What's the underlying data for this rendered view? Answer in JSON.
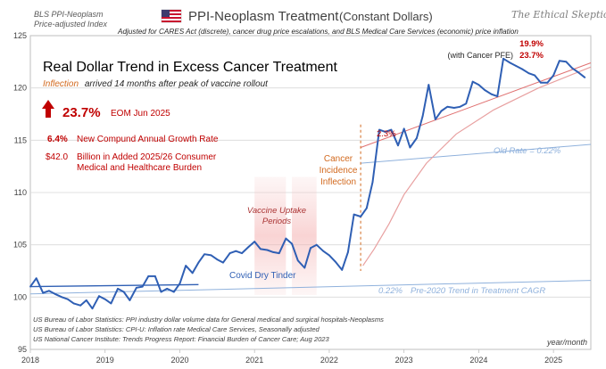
{
  "corner_label_line1": "BLS PPI-Neoplasm",
  "corner_label_line2": "Price-adjusted Index",
  "title_main": "PPI-Neoplasm Treatment",
  "title_sub": "(Constant Dollars)",
  "brand": "The Ethical Skeptic",
  "subtitle": "Adjusted for CARES Act (discrete), cancer drug price escalations, and BLS Medical Care Services (economic) price inflation",
  "headline": "Real Dollar Trend in Excess Cancer Treatment",
  "inflection_word": "Inflection",
  "inflection_rest": "arrived 14 months after peak of vaccine rollout",
  "stat_big": "23.7%",
  "stat_big_note": "EOM Jun 2025",
  "stat_rate_value": "6.4%",
  "stat_rate_label": "New Compund Annual Growth Rate",
  "stat_burden_value": "$42.0",
  "stat_burden_line1": "Billion in Added 2025/26 Consumer",
  "stat_burden_line2": "Medical and Healthcare Burden",
  "annot_vaccine_line1": "Vaccine Uptake",
  "annot_vaccine_line2": "Periods",
  "annot_tinder": "Covid Dry Tinder",
  "annot_cancer_line1": "Cancer",
  "annot_cancer_line2": "Incidence",
  "annot_cancer_line3": "Inflection",
  "annot_trend_pct": "2.3%",
  "annot_old_rate": "Old Rate = 0.22%",
  "annot_pre2020_pct": "0.22%",
  "annot_pre2020_text": "Pre-2020 Trend in Treatment CAGR",
  "annot_top_pct1": "19.9%",
  "annot_with_pfe": "(with Cancer PFE)",
  "annot_top_pct2": "23.7%",
  "axis_unit": "year/month",
  "sources": [
    "US Bureau of Labor Statistics: PPI industry dollar volume data for General medical and surgical hospitals-Neoplasms",
    "US Bureau of Labor Statistics: CPI-U: Inflation rate Medical Care Services, Seasonally adjusted",
    "US National Cancer Institute: Trends Progress Report: Financial Burden of Cancer Care; Aug 2023"
  ],
  "colors": {
    "series": "#2f5fb4",
    "accent_red": "#c00000",
    "orange": "#d2691e",
    "light_blue": "#8fb1dc",
    "grid": "#d9d9d9"
  },
  "chart_data": {
    "type": "line",
    "title": "PPI-Neoplasm Treatment (Constant Dollars)",
    "ylabel": "BLS PPI-Neoplasm Price-adjusted Index",
    "xlabel": "year/month",
    "ylim": [
      95,
      125
    ],
    "yticks": [
      95,
      100,
      105,
      110,
      115,
      120,
      125
    ],
    "xlim": [
      2018.0,
      2025.5
    ],
    "xticks": [
      "2018",
      "2019",
      "2020",
      "2021",
      "2022",
      "2023",
      "2024",
      "2025"
    ],
    "grid": true,
    "series": [
      {
        "name": "PPI-Neoplasm (constant dollars)",
        "x": [
          2018.0,
          2018.08,
          2018.17,
          2018.25,
          2018.33,
          2018.42,
          2018.5,
          2018.58,
          2018.67,
          2018.75,
          2018.83,
          2018.92,
          2019.0,
          2019.08,
          2019.17,
          2019.25,
          2019.33,
          2019.42,
          2019.5,
          2019.58,
          2019.67,
          2019.75,
          2019.83,
          2019.92,
          2020.0,
          2020.08,
          2020.17,
          2020.25,
          2020.33,
          2020.42,
          2020.5,
          2020.58,
          2020.67,
          2020.75,
          2020.83,
          2020.92,
          2021.0,
          2021.08,
          2021.17,
          2021.25,
          2021.33,
          2021.42,
          2021.5,
          2021.58,
          2021.67,
          2021.75,
          2021.83,
          2021.92,
          2022.0,
          2022.08,
          2022.17,
          2022.25,
          2022.33,
          2022.42,
          2022.5,
          2022.58,
          2022.67,
          2022.75,
          2022.83,
          2022.92,
          2023.0,
          2023.08,
          2023.17,
          2023.25,
          2023.33,
          2023.42,
          2023.5,
          2023.58,
          2023.67,
          2023.75,
          2023.83,
          2023.92,
          2024.0,
          2024.08,
          2024.17,
          2024.25,
          2024.33,
          2024.42,
          2024.5,
          2024.58,
          2024.67,
          2024.75,
          2024.83,
          2024.92,
          2025.0,
          2025.08,
          2025.17,
          2025.25,
          2025.33,
          2025.42
        ],
        "y": [
          101.0,
          101.8,
          100.4,
          100.6,
          100.3,
          100.0,
          99.8,
          99.4,
          99.2,
          99.7,
          98.9,
          100.1,
          99.8,
          99.4,
          100.8,
          100.5,
          99.7,
          100.9,
          101.0,
          102.0,
          102.0,
          100.5,
          100.8,
          100.5,
          101.3,
          103.0,
          102.3,
          103.3,
          104.1,
          104.0,
          103.6,
          103.3,
          104.2,
          104.4,
          104.2,
          104.8,
          105.3,
          104.6,
          104.5,
          104.3,
          104.2,
          105.6,
          105.1,
          103.5,
          102.8,
          104.7,
          105.0,
          104.4,
          104.0,
          103.4,
          102.6,
          104.3,
          107.9,
          107.7,
          108.5,
          111.0,
          116.0,
          115.8,
          116.0,
          114.5,
          116.1,
          114.3,
          115.2,
          117.3,
          120.3,
          117.0,
          117.8,
          118.2,
          118.1,
          118.2,
          118.5,
          120.6,
          120.3,
          119.8,
          119.4,
          119.2,
          122.8,
          122.4,
          122.1,
          121.8,
          121.4,
          121.2,
          120.5,
          120.5,
          121.2,
          122.6,
          122.5,
          121.9,
          121.5,
          121.0
        ]
      },
      {
        "name": "Pre-2020 trend",
        "x": [
          2018.0,
          2020.25
        ],
        "y": [
          101.0,
          101.2
        ]
      },
      {
        "name": "0.22% pre-2020 trend (extended)",
        "x": [
          2018.0,
          2025.5
        ],
        "y": [
          100.3,
          101.6
        ]
      },
      {
        "name": "Old Rate = 0.22%",
        "x": [
          2022.42,
          2025.5
        ],
        "y": [
          112.8,
          114.6
        ]
      },
      {
        "name": "2.3% trend",
        "x": [
          2022.42,
          2025.5
        ],
        "y": [
          114.3,
          122.4
        ]
      },
      {
        "name": "Inflection curve",
        "x": [
          2022.45,
          2022.6,
          2022.8,
          2023.0,
          2023.3,
          2023.7,
          2024.2,
          2024.8,
          2025.5
        ],
        "y": [
          103.0,
          104.6,
          107.0,
          109.8,
          112.8,
          115.6,
          117.9,
          120.0,
          122.0
        ]
      }
    ],
    "inflection_x": 2022.42,
    "vaccine_uptake_periods": [
      [
        2021.0,
        2021.42
      ],
      [
        2021.5,
        2021.83
      ]
    ]
  }
}
